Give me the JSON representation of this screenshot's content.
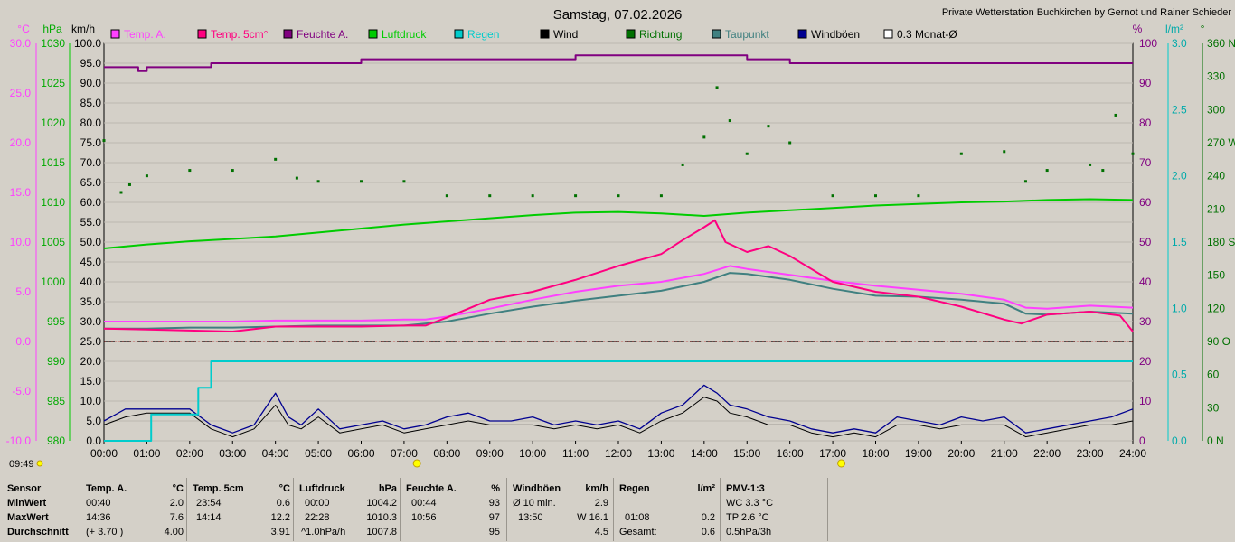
{
  "title": "Samstag, 07.02.2026",
  "station": "Private Wetterstation Buchkirchen by Gernot und Rainer Schieder",
  "colors": {
    "temp_a": "#ff40ff",
    "temp_5cm": "#ff0080",
    "feuchte": "#800080",
    "luftdruck": "#00cc00",
    "regen": "#00cccc",
    "wind": "#000000",
    "richtung": "#007000",
    "taupunkt": "#408080",
    "windboeen": "#000090",
    "monat": "#ffffff"
  },
  "legend": [
    {
      "label": "Temp. A.",
      "color": "#ff40ff",
      "textcolor": "#ff40ff"
    },
    {
      "label": "Temp. 5cm°",
      "color": "#ff0080",
      "textcolor": "#ff0080"
    },
    {
      "label": "Feuchte A.",
      "color": "#800080",
      "textcolor": "#800080"
    },
    {
      "label": "Luftdruck",
      "color": "#00cc00",
      "textcolor": "#00cc00"
    },
    {
      "label": "Regen",
      "color": "#00cccc",
      "textcolor": "#00cccc"
    },
    {
      "label": "Wind",
      "color": "#000000",
      "textcolor": "#000000"
    },
    {
      "label": "Richtung",
      "color": "#007000",
      "textcolor": "#007000"
    },
    {
      "label": "Taupunkt",
      "color": "#408080",
      "textcolor": "#408080"
    },
    {
      "label": "Windböen",
      "color": "#000090",
      "textcolor": "#000000"
    },
    {
      "label": "0.3 Monat-Ø",
      "color": "#ffffff",
      "textcolor": "#000000"
    }
  ],
  "axes": {
    "temp": {
      "unit": "°C",
      "ticks": [
        "30.0",
        "25.0",
        "20.0",
        "15.0",
        "10.0",
        "5.0",
        "0.0",
        "-5.0",
        "-10.0"
      ]
    },
    "hpa": {
      "unit": "hPa",
      "ticks": [
        "1030",
        "1025",
        "1020",
        "1015",
        "1010",
        "1005",
        "1000",
        "995",
        "990",
        "985",
        "980"
      ]
    },
    "kmh": {
      "unit": "km/h",
      "ticks": [
        "100.0",
        "95.0",
        "90.0",
        "85.0",
        "80.0",
        "75.0",
        "70.0",
        "65.0",
        "60.0",
        "55.0",
        "50.0",
        "45.0",
        "40.0",
        "35.0",
        "30.0",
        "25.0",
        "20.0",
        "15.0",
        "10.0",
        "5.0",
        "0.0"
      ]
    },
    "pct": {
      "unit": "%",
      "ticks": [
        "100",
        "90",
        "80",
        "70",
        "60",
        "50",
        "40",
        "30",
        "20",
        "10",
        "0"
      ]
    },
    "lm2": {
      "unit": "l/m²",
      "ticks": [
        "3.0",
        "2.5",
        "2.0",
        "1.5",
        "1.0",
        "0.5",
        "0.0"
      ]
    },
    "deg": {
      "unit": "°",
      "ticks": [
        "360 N",
        "330",
        "300",
        "270 W",
        "240",
        "210",
        "180 S",
        "150",
        "120",
        "90 O",
        "60",
        "30",
        "0 N"
      ]
    },
    "x_ticks": [
      "00:00",
      "01:00",
      "02:00",
      "03:00",
      "04:00",
      "05:00",
      "06:00",
      "07:00",
      "08:00",
      "09:00",
      "10:00",
      "11:00",
      "12:00",
      "13:00",
      "14:00",
      "15:00",
      "16:00",
      "17:00",
      "18:00",
      "19:00",
      "20:00",
      "21:00",
      "22:00",
      "23:00",
      "24:00"
    ]
  },
  "time_label": "09:49",
  "chart_data": {
    "type": "line",
    "x_unit": "hours",
    "xlim": [
      0,
      24
    ],
    "series": [
      {
        "name": "Temp. A.",
        "unit": "°C",
        "x": [
          0,
          1,
          2,
          3,
          4,
          5,
          6,
          7,
          7.5,
          8,
          9,
          10,
          11,
          12,
          13,
          14,
          14.6,
          15,
          16,
          17,
          18,
          19,
          20,
          21,
          21.5,
          22,
          23,
          23.5,
          24
        ],
        "values": [
          2.0,
          2.0,
          2.0,
          2.0,
          2.1,
          2.1,
          2.1,
          2.2,
          2.2,
          2.5,
          3.3,
          4.2,
          5.0,
          5.6,
          6.0,
          6.8,
          7.6,
          7.3,
          6.7,
          6.1,
          5.6,
          5.2,
          4.8,
          4.2,
          3.4,
          3.3,
          3.6,
          3.5,
          3.4
        ]
      },
      {
        "name": "Temp. 5cm°",
        "unit": "°C",
        "x": [
          0,
          1,
          2,
          3,
          4,
          5,
          6,
          7,
          7.5,
          8,
          9,
          10,
          11,
          12,
          13,
          13.5,
          14,
          14.25,
          14.5,
          15,
          15.5,
          16,
          17,
          18,
          19,
          20,
          21,
          21.4,
          22,
          23,
          23.7,
          24
        ],
        "values": [
          1.3,
          1.2,
          1.1,
          1.0,
          1.5,
          1.5,
          1.5,
          1.6,
          1.6,
          2.4,
          4.2,
          5.0,
          6.2,
          7.6,
          8.8,
          10.2,
          11.5,
          12.2,
          10.0,
          9.0,
          9.6,
          8.6,
          6.0,
          5.0,
          4.5,
          3.5,
          2.2,
          1.8,
          2.7,
          3.0,
          2.6,
          1.0
        ]
      },
      {
        "name": "Feuchte A.",
        "unit": "%",
        "x": [
          0,
          0.6,
          0.8,
          1,
          2,
          2.5,
          3,
          4,
          5,
          6,
          7,
          8,
          9,
          10,
          11,
          12,
          13,
          14,
          15,
          16,
          17,
          18,
          19,
          20,
          21,
          22,
          23,
          24
        ],
        "values": [
          94,
          94,
          93,
          94,
          94,
          95,
          95,
          95,
          95,
          96,
          96,
          96,
          96,
          96,
          97,
          97,
          97,
          97,
          96,
          95,
          95,
          95,
          95,
          95,
          95,
          95,
          95,
          95
        ]
      },
      {
        "name": "Luftdruck",
        "unit": "hPa",
        "x": [
          0,
          1,
          2,
          3,
          4,
          5,
          6,
          7,
          8,
          9,
          10,
          11,
          12,
          13,
          14,
          15,
          16,
          17,
          18,
          19,
          20,
          21,
          22,
          23,
          24
        ],
        "values": [
          1004.2,
          1004.7,
          1005.1,
          1005.4,
          1005.7,
          1006.2,
          1006.7,
          1007.2,
          1007.6,
          1008.0,
          1008.4,
          1008.7,
          1008.8,
          1008.6,
          1008.3,
          1008.7,
          1009.0,
          1009.3,
          1009.6,
          1009.8,
          1010.0,
          1010.1,
          1010.3,
          1010.4,
          1010.3
        ]
      },
      {
        "name": "Regen",
        "unit": "l/m²",
        "x": [
          0,
          1.08,
          1.1,
          2,
          2.2,
          2.3,
          2.5,
          2.55,
          24
        ],
        "values": [
          0,
          0,
          0.2,
          0.2,
          0.4,
          0.4,
          0.6,
          0.6,
          0.6
        ]
      },
      {
        "name": "Taupunkt",
        "unit": "°C",
        "x": [
          0,
          1,
          2,
          3,
          4,
          5,
          6,
          7,
          8,
          9,
          10,
          11,
          12,
          13,
          14,
          14.6,
          15,
          16,
          17,
          18,
          19,
          20,
          21,
          21.5,
          22,
          23,
          24
        ],
        "values": [
          1.3,
          1.3,
          1.4,
          1.4,
          1.5,
          1.6,
          1.6,
          1.6,
          2.0,
          2.8,
          3.5,
          4.1,
          4.6,
          5.1,
          6.0,
          6.9,
          6.8,
          6.2,
          5.3,
          4.6,
          4.5,
          4.2,
          3.8,
          2.8,
          2.7,
          3.0,
          2.8
        ]
      },
      {
        "name": "Windböen",
        "unit": "km/h",
        "x": [
          0,
          0.5,
          1,
          1.5,
          2,
          2.5,
          3,
          3.5,
          4,
          4.3,
          4.6,
          5,
          5.5,
          6,
          6.5,
          7,
          7.5,
          8,
          8.5,
          9,
          9.5,
          10,
          10.5,
          11,
          11.5,
          12,
          12.5,
          13,
          13.5,
          14,
          14.3,
          14.6,
          15,
          15.5,
          16,
          16.5,
          17,
          17.5,
          18,
          18.5,
          19,
          19.5,
          20,
          20.5,
          21,
          21.5,
          22,
          22.5,
          23,
          23.5,
          24
        ],
        "values": [
          5,
          8,
          8,
          8,
          8,
          4,
          2,
          4,
          12,
          6,
          4,
          8,
          3,
          4,
          5,
          3,
          4,
          6,
          7,
          5,
          5,
          6,
          4,
          5,
          4,
          5,
          3,
          7,
          9,
          14,
          12,
          9,
          8,
          6,
          5,
          3,
          2,
          3,
          2,
          6,
          5,
          4,
          6,
          5,
          6,
          2,
          3,
          4,
          5,
          6,
          8
        ]
      },
      {
        "name": "Wind",
        "unit": "km/h",
        "x": [
          0,
          0.5,
          1,
          1.5,
          2,
          2.5,
          3,
          3.5,
          4,
          4.3,
          4.6,
          5,
          5.5,
          6,
          6.5,
          7,
          7.5,
          8,
          8.5,
          9,
          9.5,
          10,
          10.5,
          11,
          11.5,
          12,
          12.5,
          13,
          13.5,
          14,
          14.3,
          14.6,
          15,
          15.5,
          16,
          16.5,
          17,
          17.5,
          18,
          18.5,
          19,
          19.5,
          20,
          20.5,
          21,
          21.5,
          22,
          22.5,
          23,
          23.5,
          24
        ],
        "values": [
          4,
          6,
          7,
          7,
          7,
          3,
          1,
          3,
          9,
          4,
          3,
          6,
          2,
          3,
          4,
          2,
          3,
          4,
          5,
          4,
          4,
          4,
          3,
          4,
          3,
          4,
          2,
          5,
          7,
          11,
          10,
          7,
          6,
          4,
          4,
          2,
          1,
          2,
          1,
          4,
          4,
          3,
          4,
          4,
          4,
          1,
          2,
          3,
          4,
          4,
          5
        ]
      },
      {
        "name": "Richtung",
        "unit": "°",
        "x": [
          0,
          0.4,
          0.6,
          1,
          2,
          3,
          4,
          4.5,
          5,
          6,
          7,
          8,
          9,
          10,
          11,
          12,
          13,
          13.5,
          14,
          14.3,
          14.6,
          15,
          15.5,
          16,
          17,
          18,
          19,
          20,
          21,
          21.5,
          22,
          23,
          23.3,
          23.6,
          24
        ],
        "values": [
          272,
          225,
          232,
          240,
          245,
          245,
          255,
          238,
          235,
          235,
          235,
          222,
          222,
          222,
          222,
          222,
          222,
          250,
          275,
          320,
          290,
          260,
          285,
          270,
          222,
          222,
          222,
          260,
          262,
          235,
          245,
          250,
          245,
          295,
          260
        ]
      },
      {
        "name": "0.3 Monat-Ø",
        "unit": "°C",
        "x": [
          0,
          24
        ],
        "values": [
          0.3,
          0.3
        ]
      }
    ]
  },
  "table": {
    "headers": {
      "sensor": "Sensor",
      "temp_a": "Temp. A.",
      "temp_a_unit": "°C",
      "temp5": "Temp. 5cm",
      "temp5_unit": "°C",
      "druck": "Luftdruck",
      "druck_unit": "hPa",
      "feuchte": "Feuchte A.",
      "feuchte_unit": "%",
      "wind": "Windböen",
      "wind_unit": "km/h",
      "regen": "Regen",
      "regen_unit": "l/m²",
      "pmv": "PMV-1:3"
    },
    "rows": [
      {
        "label": "MinWert",
        "ta_t": "00:40",
        "ta_v": "2.0",
        "t5_t": "23:54",
        "t5_v": "0.6",
        "p_t": "00:00",
        "p_v": "1004.2",
        "h_t": "00:44",
        "h_v": "93",
        "w_t": "Ø 10 min.",
        "w_v": "2.9",
        "r_t": "",
        "r_v": "",
        "pmv": "WC 3.3 °C"
      },
      {
        "label": "MaxWert",
        "ta_t": "14:36",
        "ta_v": "7.6",
        "t5_t": "14:14",
        "t5_v": "12.2",
        "p_t": "22:28",
        "p_v": "1010.3",
        "h_t": "10:56",
        "h_v": "97",
        "w_t": "13:50",
        "w_v": "W 16.1",
        "r_t": "01:08",
        "r_v": "0.2",
        "pmv": "TP 2.6 °C"
      },
      {
        "label": "Durchschnitt",
        "ta_t": "(+ 3.70 )",
        "ta_v": "4.00",
        "t5_t": "",
        "t5_v": "3.91",
        "p_t": "^1.0hPa/h",
        "p_v": "1007.8",
        "h_t": "",
        "h_v": "95",
        "w_t": "",
        "w_v": "4.5",
        "r_t": "Gesamt:",
        "r_v": "0.6",
        "pmv": "0.5hPa/3h"
      }
    ]
  }
}
